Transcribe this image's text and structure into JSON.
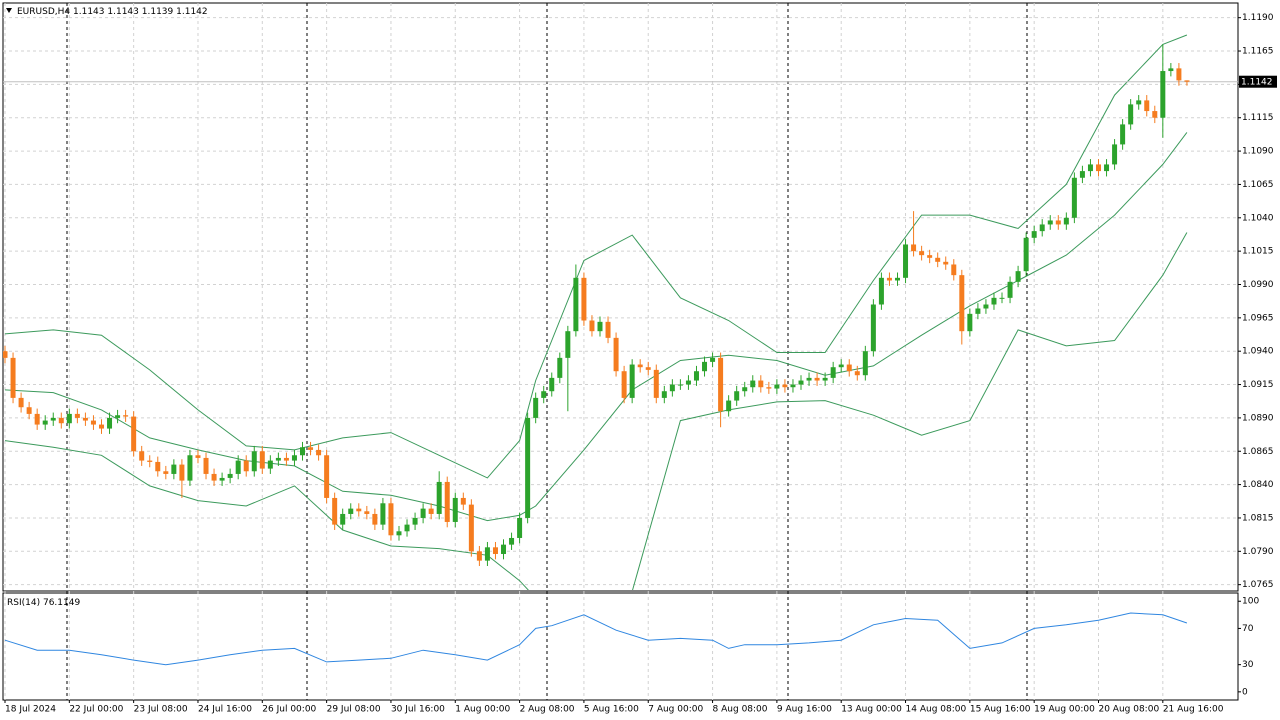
{
  "chart_data": [
    {
      "type": "candlestick",
      "symbol": "EURUSD,H4",
      "xlim": [
        -0.25,
        153.35
      ],
      "ylim": [
        1.0761,
        1.1201
      ],
      "grid": true,
      "xticks": [
        {
          "value": 0,
          "label": "18 Jul 2024"
        },
        {
          "value": 8,
          "label": "22 Jul 00:00"
        },
        {
          "value": 16,
          "label": "23 Jul 08:00"
        },
        {
          "value": 24,
          "label": "24 Jul 16:00"
        },
        {
          "value": 32,
          "label": "26 Jul 00:00"
        },
        {
          "value": 40,
          "label": "29 Jul 08:00"
        },
        {
          "value": 48,
          "label": "30 Jul 16:00"
        },
        {
          "value": 56,
          "label": "1 Aug 00:00"
        },
        {
          "value": 64,
          "label": "2 Aug 08:00"
        },
        {
          "value": 72,
          "label": "5 Aug 16:00"
        },
        {
          "value": 80,
          "label": "7 Aug 00:00"
        },
        {
          "value": 88,
          "label": "8 Aug 08:00"
        },
        {
          "value": 96,
          "label": "9 Aug 16:00"
        },
        {
          "value": 104,
          "label": "13 Aug 00:00"
        },
        {
          "value": 112,
          "label": "14 Aug 08:00"
        },
        {
          "value": 120,
          "label": "15 Aug 16:00"
        },
        {
          "value": 128,
          "label": "19 Aug 00:00"
        },
        {
          "value": 136,
          "label": "20 Aug 08:00"
        },
        {
          "value": 144,
          "label": "21 Aug 16:00"
        }
      ],
      "yticks": [
        {
          "value": 1.119,
          "label": "1.1190"
        },
        1.1165,
        {
          "value": 1.114,
          "label": "1.1140"
        },
        1.1115,
        {
          "value": 1.109,
          "label": "1.1090"
        },
        1.1065,
        {
          "value": 1.104,
          "label": "1.1040"
        },
        1.1015,
        {
          "value": 1.099,
          "label": "1.0990"
        },
        1.0965,
        {
          "value": 1.094,
          "label": "1.0940"
        },
        1.0915,
        {
          "value": 1.089,
          "label": "1.0890"
        },
        1.0865,
        {
          "value": 1.084,
          "label": "1.0840"
        },
        1.0815,
        {
          "value": 1.079,
          "label": "1.0790"
        },
        1.0765
      ],
      "candles": {
        "up_color": "#2ca32c",
        "down_color": "#f57c1f",
        "open": [
          1.094,
          1.0935,
          1.0905,
          1.0898,
          1.0893,
          1.0885,
          1.0888,
          1.089,
          1.0886,
          1.0893,
          1.089,
          1.0888,
          1.0885,
          1.0882,
          1.089,
          1.0892,
          1.0891,
          1.0865,
          1.0858,
          1.0857,
          1.085,
          1.0848,
          1.0855,
          1.0843,
          1.0862,
          1.086,
          1.0848,
          1.0843,
          1.0845,
          1.0848,
          1.0858,
          1.085,
          1.0865,
          1.0852,
          1.0858,
          1.086,
          1.0858,
          1.0862,
          1.0868,
          1.0866,
          1.0862,
          1.083,
          1.081,
          1.0818,
          1.0822,
          1.082,
          1.0818,
          1.081,
          1.0826,
          1.0802,
          1.0805,
          1.081,
          1.0815,
          1.0822,
          1.0818,
          1.0842,
          1.0812,
          1.083,
          1.0825,
          1.079,
          1.0783,
          1.0793,
          1.0788,
          1.0795,
          1.08,
          1.0815,
          1.089,
          1.0905,
          1.091,
          1.092,
          1.0935,
          1.0955,
          1.0995,
          1.0963,
          1.0955,
          1.0962,
          1.095,
          1.0925,
          1.0905,
          1.093,
          1.0928,
          1.0926,
          1.0905,
          1.091,
          1.0915,
          1.0915,
          1.0918,
          1.0925,
          1.0932,
          1.0935,
          1.0895,
          1.0903,
          1.091,
          1.0913,
          1.0918,
          1.0913,
          1.0912,
          1.0915,
          1.0913,
          1.0915,
          1.0918,
          1.092,
          1.0918,
          1.092,
          1.0928,
          1.093,
          1.0925,
          1.0922,
          1.094,
          1.0975,
          1.0995,
          1.0993,
          1.0995,
          1.102,
          1.1015,
          1.1012,
          1.101,
          1.1007,
          1.1005,
          1.0997,
          1.0955,
          1.0968,
          1.0972,
          1.0975,
          1.098,
          1.098,
          1.0992,
          1.1,
          1.1025,
          1.103,
          1.1035,
          1.1038,
          1.1035,
          1.104,
          1.107,
          1.1075,
          1.108,
          1.1075,
          1.108,
          1.1095,
          1.111,
          1.1125,
          1.1128,
          1.112,
          1.1115,
          1.115,
          1.1152,
          1.1143
        ],
        "high": [
          1.0944,
          1.0939,
          1.0909,
          1.0902,
          1.0897,
          1.0892,
          1.0894,
          1.0894,
          1.0897,
          1.0897,
          1.0894,
          1.0892,
          1.0889,
          1.0894,
          1.0896,
          1.0896,
          1.0895,
          1.0869,
          1.0862,
          1.0861,
          1.0854,
          1.0859,
          1.0859,
          1.0866,
          1.0866,
          1.0864,
          1.0852,
          1.0849,
          1.0852,
          1.0862,
          1.0862,
          1.0869,
          1.0869,
          1.0862,
          1.0864,
          1.0864,
          1.0866,
          1.0872,
          1.0872,
          1.087,
          1.0866,
          1.0834,
          1.0822,
          1.0826,
          1.0826,
          1.0824,
          1.0822,
          1.083,
          1.083,
          1.0809,
          1.0814,
          1.0819,
          1.0826,
          1.0826,
          1.085,
          1.0846,
          1.0834,
          1.0834,
          1.0829,
          1.0794,
          1.0797,
          1.0797,
          1.0799,
          1.0804,
          1.0819,
          1.0894,
          1.0909,
          1.0914,
          1.0924,
          1.0939,
          1.0959,
          1.1005,
          1.0999,
          1.0967,
          1.0966,
          1.0966,
          1.0954,
          1.0929,
          1.0934,
          1.0934,
          1.0932,
          1.093,
          1.0914,
          1.0919,
          1.0919,
          1.0922,
          1.0929,
          1.0936,
          1.0939,
          1.0939,
          1.0907,
          1.0914,
          1.0917,
          1.0922,
          1.0922,
          1.0917,
          1.0919,
          1.0919,
          1.0919,
          1.0922,
          1.0924,
          1.0924,
          1.0924,
          1.0932,
          1.0934,
          1.0934,
          1.0929,
          1.0944,
          1.0979,
          1.0999,
          1.0999,
          1.0999,
          1.1024,
          1.1045,
          1.1019,
          1.1016,
          1.1014,
          1.1011,
          1.1009,
          1.1001,
          1.0972,
          1.0976,
          1.0979,
          1.0984,
          1.0984,
          1.0996,
          1.1004,
          1.1029,
          1.1034,
          1.1039,
          1.1042,
          1.1042,
          1.1044,
          1.1074,
          1.1079,
          1.1084,
          1.1084,
          1.1084,
          1.1099,
          1.1114,
          1.1129,
          1.1132,
          1.1132,
          1.1124,
          1.117,
          1.1156,
          1.1156,
          1.1143
        ],
        "low": [
          1.0931,
          1.0901,
          1.0894,
          1.0889,
          1.0881,
          1.0881,
          1.0884,
          1.0882,
          1.0882,
          1.0886,
          1.0884,
          1.0881,
          1.0878,
          1.0878,
          1.0886,
          1.0887,
          1.0861,
          1.0854,
          1.0853,
          1.0846,
          1.0844,
          1.0844,
          1.083,
          1.0839,
          1.0856,
          1.0844,
          1.0839,
          1.0839,
          1.0841,
          1.0844,
          1.0846,
          1.0846,
          1.0848,
          1.0848,
          1.0854,
          1.0854,
          1.0854,
          1.0858,
          1.0862,
          1.0858,
          1.0826,
          1.0806,
          1.0806,
          1.0814,
          1.0816,
          1.0814,
          1.0806,
          1.0806,
          1.0798,
          1.0798,
          1.0801,
          1.0806,
          1.0811,
          1.0814,
          1.0814,
          1.0808,
          1.0808,
          1.0821,
          1.0786,
          1.0779,
          1.0779,
          1.0784,
          1.0784,
          1.0791,
          1.0796,
          1.0811,
          1.0886,
          1.0901,
          1.0906,
          1.0916,
          1.0895,
          1.0951,
          1.0959,
          1.0951,
          1.0951,
          1.0946,
          1.0921,
          1.0901,
          1.0901,
          1.0924,
          1.0922,
          1.0901,
          1.0901,
          1.0906,
          1.0911,
          1.0911,
          1.0914,
          1.0921,
          1.0928,
          1.0883,
          1.0891,
          1.0899,
          1.0906,
          1.0909,
          1.0909,
          1.0908,
          1.0908,
          1.0909,
          1.0909,
          1.0911,
          1.0914,
          1.0914,
          1.0914,
          1.0916,
          1.0924,
          1.0921,
          1.0918,
          1.0918,
          1.0936,
          1.0971,
          1.0989,
          1.0989,
          1.0991,
          1.1011,
          1.1008,
          1.1006,
          1.1003,
          1.1001,
          1.0993,
          1.0945,
          1.0951,
          1.0964,
          1.0968,
          1.0971,
          1.0976,
          1.0976,
          1.0988,
          1.0996,
          1.1021,
          1.1026,
          1.1031,
          1.1031,
          1.1031,
          1.1036,
          1.1066,
          1.1071,
          1.1071,
          1.1071,
          1.1076,
          1.1091,
          1.1106,
          1.1121,
          1.1116,
          1.1111,
          1.11,
          1.1146,
          1.1139,
          1.1139
        ],
        "close": [
          1.0935,
          1.0905,
          1.0898,
          1.0893,
          1.0885,
          1.0888,
          1.089,
          1.0886,
          1.0893,
          1.089,
          1.0888,
          1.0885,
          1.0882,
          1.089,
          1.0892,
          1.0891,
          1.0865,
          1.0858,
          1.0857,
          1.085,
          1.0848,
          1.0855,
          1.0843,
          1.0862,
          1.086,
          1.0848,
          1.0843,
          1.0845,
          1.0848,
          1.0858,
          1.085,
          1.0865,
          1.0852,
          1.0858,
          1.086,
          1.0858,
          1.0862,
          1.0868,
          1.0866,
          1.0862,
          1.083,
          1.081,
          1.0818,
          1.0822,
          1.082,
          1.0818,
          1.081,
          1.0826,
          1.0802,
          1.0805,
          1.081,
          1.0815,
          1.0822,
          1.0818,
          1.0842,
          1.0812,
          1.083,
          1.0825,
          1.079,
          1.0783,
          1.0793,
          1.0788,
          1.0795,
          1.08,
          1.0815,
          1.089,
          1.0905,
          1.091,
          1.092,
          1.0935,
          1.0955,
          1.0995,
          1.0963,
          1.0955,
          1.0962,
          1.095,
          1.0925,
          1.0905,
          1.093,
          1.0928,
          1.0926,
          1.0905,
          1.091,
          1.0915,
          1.0915,
          1.0918,
          1.0925,
          1.0932,
          1.0935,
          1.0895,
          1.0903,
          1.091,
          1.0913,
          1.0918,
          1.0913,
          1.0912,
          1.0915,
          1.0913,
          1.0915,
          1.0918,
          1.092,
          1.0918,
          1.092,
          1.0928,
          1.093,
          1.0925,
          1.0922,
          1.094,
          1.0975,
          1.0995,
          1.0993,
          1.0995,
          1.102,
          1.1015,
          1.1012,
          1.101,
          1.1007,
          1.1005,
          1.0997,
          1.0955,
          1.0968,
          1.0972,
          1.0975,
          1.098,
          1.098,
          1.0992,
          1.1,
          1.1025,
          1.103,
          1.1035,
          1.1038,
          1.1035,
          1.104,
          1.107,
          1.1075,
          1.108,
          1.1075,
          1.108,
          1.1095,
          1.111,
          1.1125,
          1.1128,
          1.112,
          1.1115,
          1.115,
          1.1152,
          1.1143,
          1.1142
        ]
      },
      "bands": {
        "color": "#3c9a5c",
        "x": [
          0,
          6,
          12,
          18,
          24,
          30,
          36,
          42,
          48,
          54,
          60,
          64,
          66,
          72,
          78,
          84,
          90,
          96,
          102,
          108,
          114,
          120,
          126,
          132,
          138,
          144,
          147
        ],
        "upper": [
          1.0953,
          1.0956,
          1.0952,
          1.0926,
          1.0896,
          1.0869,
          1.0866,
          1.0875,
          1.0879,
          1.0862,
          1.0845,
          1.0873,
          1.0918,
          1.1008,
          1.1027,
          1.098,
          1.0963,
          1.0939,
          1.0939,
          1.0993,
          1.1042,
          1.1042,
          1.1032,
          1.1065,
          1.1132,
          1.117,
          1.1177
        ],
        "middle": [
          1.0911,
          1.0909,
          1.0896,
          1.0875,
          1.0866,
          1.0858,
          1.0854,
          1.0835,
          1.0832,
          1.0824,
          1.0813,
          1.0817,
          1.0824,
          1.0866,
          1.0911,
          1.0933,
          1.0937,
          1.0933,
          1.0922,
          1.0929,
          1.0952,
          1.0974,
          1.0993,
          1.1012,
          1.1042,
          1.108,
          1.1104
        ],
        "lower": [
          1.0873,
          1.0868,
          1.0862,
          1.0839,
          1.0828,
          1.0824,
          1.0839,
          1.0806,
          1.0794,
          1.0792,
          1.0787,
          1.0768,
          1.0755,
          1.072,
          1.076,
          1.0888,
          1.0896,
          1.0902,
          1.0903,
          1.0892,
          1.0877,
          1.0888,
          1.0956,
          1.0944,
          1.0948,
          1.0997,
          1.1029
        ]
      }
    },
    {
      "type": "line",
      "title": "RSI(14)",
      "value": 76.1149,
      "color": "#2f86e0",
      "xlim": [
        -0.25,
        153.35
      ],
      "ylim": [
        -9,
        108
      ],
      "yticks": [
        100,
        70,
        30,
        0
      ],
      "x": [
        0,
        4,
        8,
        12,
        16,
        20,
        24,
        28,
        32,
        36,
        40,
        44,
        48,
        52,
        56,
        60,
        64,
        66,
        68,
        72,
        76,
        80,
        84,
        88,
        90,
        92,
        96,
        100,
        104,
        108,
        112,
        116,
        120,
        124,
        128,
        132,
        136,
        140,
        144,
        147
      ],
      "values": [
        57,
        46,
        46,
        41,
        35,
        30,
        35,
        41,
        46,
        48,
        33,
        35,
        37,
        46,
        41,
        35,
        52,
        70,
        73,
        85,
        68,
        57,
        59,
        57,
        48,
        52,
        52,
        54,
        57,
        74,
        81,
        79,
        48,
        54,
        70,
        74,
        79,
        87,
        85,
        76
      ]
    }
  ]
}
